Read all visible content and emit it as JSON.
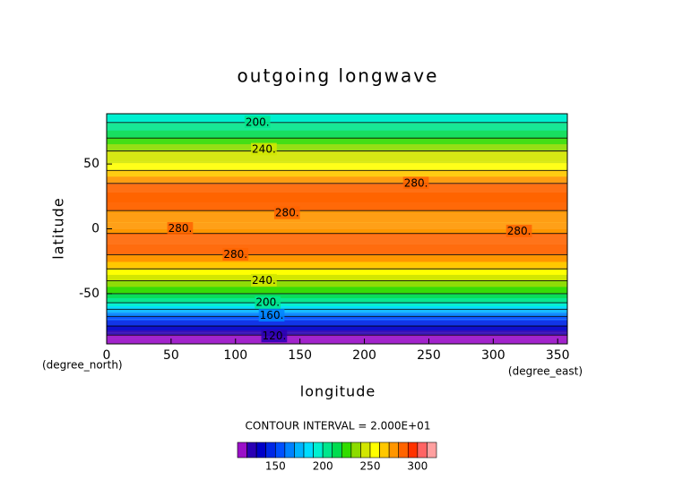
{
  "chart_data": {
    "type": "contour",
    "title": "outgoing longwave",
    "x_label": "longitude",
    "y_label": "latitude",
    "x_unit": "(degree_east)",
    "y_unit": "(degree_north)",
    "xlim": [
      0,
      357.5
    ],
    "ylim": [
      -88.75,
      88.75
    ],
    "xticks": [
      0,
      50,
      100,
      150,
      200,
      250,
      300,
      350
    ],
    "yticks": [
      -50,
      0,
      50
    ],
    "latitudes": [
      -88.75,
      -84,
      -80,
      -75,
      -70,
      -66,
      -62,
      -57,
      -50,
      -40,
      -30,
      -20,
      -12,
      -5,
      0,
      5,
      12,
      20,
      28,
      35,
      45,
      52,
      60,
      70,
      82,
      88.75
    ],
    "values": [
      108,
      115,
      125,
      140,
      152,
      165,
      180,
      200,
      220,
      240,
      262,
      280,
      288,
      282,
      275,
      270,
      278,
      286,
      288,
      280,
      260,
      248,
      240,
      220,
      200,
      196
    ],
    "contour_levels": [
      120,
      140,
      160,
      180,
      200,
      220,
      240,
      260,
      280
    ],
    "contour_labels": [
      {
        "value": 200,
        "label": "200.",
        "lon": 117,
        "lat": 82
      },
      {
        "value": 240,
        "label": "240.",
        "lon": 122,
        "lat": 61
      },
      {
        "value": 280,
        "label": "280.",
        "lon": 240,
        "lat": 35
      },
      {
        "value": 280,
        "label": "280.",
        "lon": 140,
        "lat": 12
      },
      {
        "value": 280,
        "label": "280.",
        "lon": 57,
        "lat": 0
      },
      {
        "value": 280,
        "label": "280.",
        "lon": 100,
        "lat": -20
      },
      {
        "value": 280,
        "label": "280.",
        "lon": 320,
        "lat": -2
      },
      {
        "value": 240,
        "label": "240.",
        "lon": 122,
        "lat": -40
      },
      {
        "value": 200,
        "label": "200.",
        "lon": 125,
        "lat": -57
      },
      {
        "value": 160,
        "label": "160.",
        "lon": 128,
        "lat": -67
      },
      {
        "value": 120,
        "label": "120.",
        "lon": 130,
        "lat": -83
      }
    ],
    "contour_interval_text": "CONTOUR INTERVAL = 2.000E+01",
    "colorbar": {
      "levels": [
        110,
        120,
        130,
        140,
        150,
        160,
        170,
        180,
        190,
        200,
        210,
        220,
        230,
        240,
        250,
        260,
        270,
        280,
        290,
        300,
        310,
        320
      ],
      "colors": [
        "#9a10c8",
        "#2a00b4",
        "#0000c8",
        "#0028e6",
        "#0050ff",
        "#0082ff",
        "#00b4ff",
        "#00dcff",
        "#00f0d0",
        "#00e68c",
        "#00dc50",
        "#32dc00",
        "#8cdc00",
        "#d2e600",
        "#ffff00",
        "#ffc800",
        "#ff9600",
        "#ff6400",
        "#ff3200",
        "#ff6464",
        "#ffa0a0"
      ],
      "ticks": [
        150,
        200,
        250,
        300
      ]
    }
  }
}
